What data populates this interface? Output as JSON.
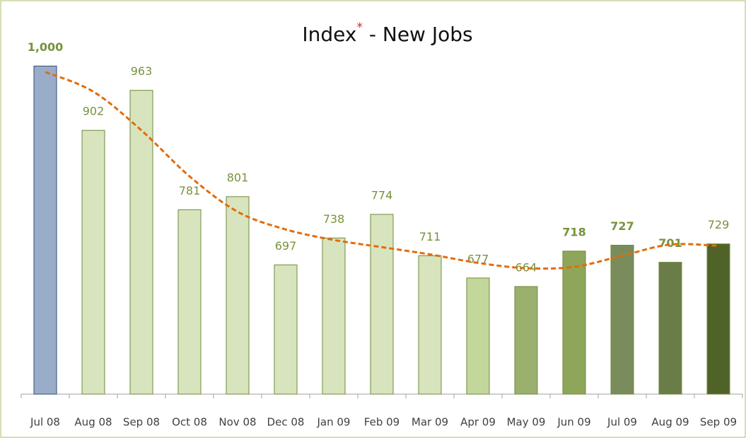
{
  "chart_data": {
    "type": "bar",
    "title_parts": [
      "Index",
      "*",
      " - New Jobs"
    ],
    "categories": [
      "Jul 08",
      "Aug 08",
      "Sep 08",
      "Oct 08",
      "Nov 08",
      "Dec 08",
      "Jan 09",
      "Feb 09",
      "Mar 09",
      "Apr 09",
      "May 09",
      "Jun 09",
      "Jul 09",
      "Aug 09",
      "Sep 09"
    ],
    "values": [
      1000,
      902,
      963,
      781,
      801,
      697,
      738,
      774,
      711,
      677,
      664,
      718,
      727,
      701,
      729
    ],
    "value_labels": [
      "1,000",
      "902",
      "963",
      "781",
      "801",
      "697",
      "738",
      "774",
      "711",
      "677",
      "664",
      "718",
      "727",
      "701",
      "729"
    ],
    "colors": [
      "#9aadc8",
      "#d7e4bd",
      "#d7e4bd",
      "#d7e4bd",
      "#d7e4bd",
      "#d7e4bd",
      "#d7e4bd",
      "#d7e4bd",
      "#d7e4bd",
      "#c3d69b",
      "#9bb06e",
      "#8da65a",
      "#7a8c5c",
      "#6a7c48",
      "#4f6228"
    ],
    "trend": {
      "values": [
        991,
        961,
        902,
        832,
        778,
        751,
        735,
        724,
        713,
        700,
        692,
        694,
        711,
        728,
        726
      ],
      "color": "#e46c0a"
    },
    "ylim": [
      500,
      1050
    ]
  }
}
